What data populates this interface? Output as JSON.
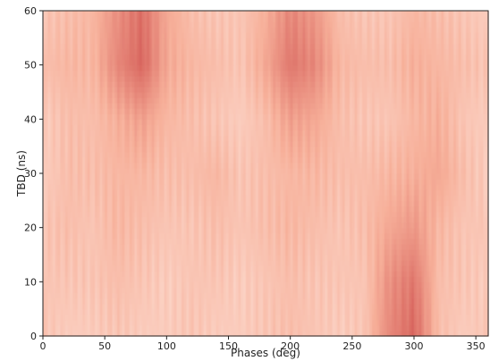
{
  "chart_data": {
    "type": "heatmap",
    "title": "",
    "xlabel": "Phases (deg)",
    "ylabel": "TBD (ns)",
    "xlim": [
      0,
      360
    ],
    "ylim": [
      0,
      60
    ],
    "x_ticks": [
      "0",
      "50",
      "100",
      "150",
      "200",
      "250",
      "300",
      "350"
    ],
    "y_ticks": [
      "0",
      "10",
      "20",
      "30",
      "40",
      "50",
      "60"
    ],
    "colormap": "Reds",
    "colors": {
      "low": "#fff5f0",
      "mid": "#f7b09a",
      "high": "#d6605a"
    },
    "x": [
      0,
      20,
      40,
      60,
      80,
      100,
      120,
      140,
      160,
      180,
      200,
      220,
      240,
      260,
      280,
      300,
      320,
      340,
      360
    ],
    "y": [
      0,
      10,
      20,
      30,
      40,
      50,
      60
    ],
    "z": [
      [
        0.35,
        0.3,
        0.3,
        0.35,
        0.3,
        0.3,
        0.35,
        0.3,
        0.3,
        0.35,
        0.4,
        0.35,
        0.3,
        0.35,
        0.75,
        0.95,
        0.4,
        0.3,
        0.35
      ],
      [
        0.35,
        0.35,
        0.35,
        0.4,
        0.35,
        0.3,
        0.35,
        0.35,
        0.3,
        0.35,
        0.4,
        0.35,
        0.35,
        0.35,
        0.7,
        0.85,
        0.4,
        0.35,
        0.3
      ],
      [
        0.35,
        0.4,
        0.35,
        0.45,
        0.4,
        0.35,
        0.35,
        0.4,
        0.35,
        0.4,
        0.45,
        0.4,
        0.35,
        0.4,
        0.55,
        0.65,
        0.45,
        0.35,
        0.35
      ],
      [
        0.3,
        0.4,
        0.4,
        0.45,
        0.45,
        0.4,
        0.4,
        0.45,
        0.35,
        0.4,
        0.45,
        0.45,
        0.4,
        0.4,
        0.45,
        0.5,
        0.55,
        0.4,
        0.3
      ],
      [
        0.3,
        0.4,
        0.4,
        0.5,
        0.6,
        0.45,
        0.4,
        0.35,
        0.3,
        0.4,
        0.6,
        0.55,
        0.4,
        0.35,
        0.35,
        0.45,
        0.5,
        0.35,
        0.3
      ],
      [
        0.4,
        0.45,
        0.45,
        0.75,
        0.95,
        0.55,
        0.45,
        0.4,
        0.35,
        0.55,
        0.85,
        0.75,
        0.45,
        0.4,
        0.4,
        0.5,
        0.45,
        0.4,
        0.35
      ],
      [
        0.35,
        0.4,
        0.45,
        0.7,
        0.9,
        0.55,
        0.4,
        0.35,
        0.35,
        0.5,
        0.75,
        0.65,
        0.4,
        0.35,
        0.35,
        0.45,
        0.4,
        0.35,
        0.3
      ]
    ]
  }
}
